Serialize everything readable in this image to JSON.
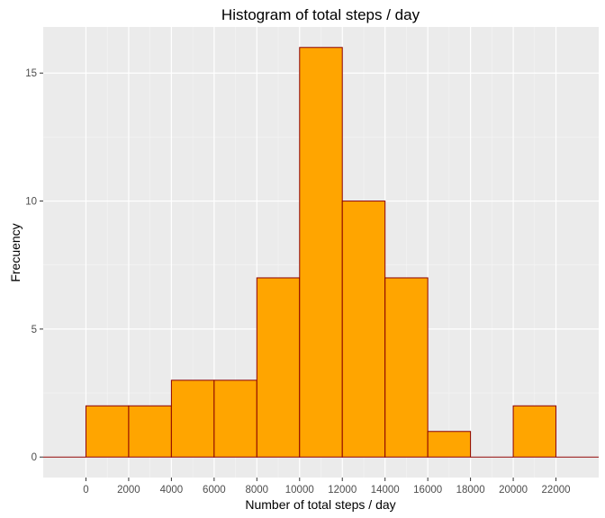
{
  "chart_data": {
    "type": "bar",
    "title": "Histogram of total steps / day",
    "xlabel": "Number of total steps / day",
    "ylabel": "Frecuency",
    "bin_edges": [
      0,
      2000,
      4000,
      6000,
      8000,
      10000,
      12000,
      14000,
      16000,
      18000,
      20000,
      22000
    ],
    "values": [
      2,
      2,
      3,
      3,
      7,
      16,
      10,
      7,
      1,
      0,
      2
    ],
    "xlim": [
      -2000,
      24000
    ],
    "ylim": [
      -0.8,
      16.8
    ],
    "x_ticks": [
      0,
      2000,
      4000,
      6000,
      8000,
      10000,
      12000,
      14000,
      16000,
      18000,
      20000,
      22000
    ],
    "x_tick_labels": [
      "0",
      "2000",
      "4000",
      "6000",
      "8000",
      "10000",
      "12000",
      "14000",
      "16000",
      "18000",
      "20000",
      "22000"
    ],
    "y_ticks": [
      0,
      5,
      10,
      15
    ],
    "y_tick_labels": [
      "0",
      "5",
      "10",
      "15"
    ],
    "grid": true,
    "legend": "none",
    "colors": {
      "panel_background": "#ebebeb",
      "grid_major": "#ffffff",
      "grid_minor": "#f5f5f5",
      "bar_fill": "#ffa500",
      "bar_outline": "#8b0000",
      "tick_mark": "#333333"
    }
  }
}
